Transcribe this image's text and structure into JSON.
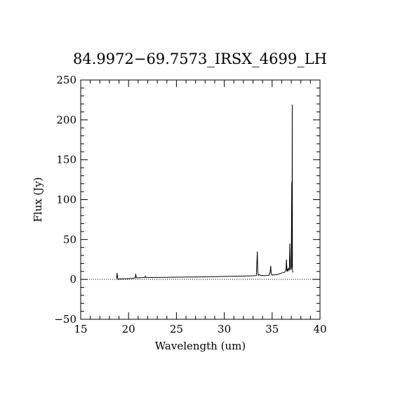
{
  "chart_data": {
    "type": "line",
    "title": "84.9972−69.7573_IRSX_4699_LH",
    "xlabel": "Wavelength (um)",
    "ylabel": "Flux (Jy)",
    "xlim": [
      15,
      40
    ],
    "ylim": [
      -50,
      250
    ],
    "x_ticks": [
      15,
      20,
      25,
      30,
      35,
      40
    ],
    "y_ticks": [
      -50,
      0,
      50,
      100,
      150,
      200,
      250
    ],
    "x_tick_labels": [
      "15",
      "20",
      "25",
      "30",
      "35",
      "40"
    ],
    "y_tick_labels": [
      "−50",
      "0",
      "50",
      "100",
      "150",
      "200",
      "250"
    ],
    "zero_line": true,
    "grid": false,
    "series": [
      {
        "x": [
          18.75,
          18.8,
          18.85,
          18.9,
          19.0,
          19.5,
          20.0,
          20.5,
          20.7,
          20.75,
          20.8,
          21.0,
          21.5,
          21.7,
          21.75,
          21.8,
          22.0,
          23.0,
          24.0,
          25.0,
          26.0,
          27.0,
          28.0,
          29.0,
          30.0,
          31.0,
          32.0,
          33.0,
          33.35,
          33.45,
          33.5,
          33.55,
          33.65,
          33.8,
          34.0,
          34.2,
          34.5,
          34.7,
          34.8,
          34.85,
          34.9,
          35.0,
          35.5,
          36.0,
          36.3,
          36.45,
          36.5,
          36.55,
          36.6,
          36.65,
          36.7,
          36.8,
          36.85,
          36.9,
          36.95,
          37.0,
          37.02,
          37.05,
          37.08,
          37.1,
          37.12,
          37.15,
          37.18,
          37.2
        ],
        "y": [
          1,
          8,
          3,
          0,
          0.5,
          0.8,
          1,
          1.5,
          2,
          7,
          2,
          2,
          2.2,
          2.5,
          4,
          2.5,
          2.5,
          2.5,
          2.6,
          2.8,
          3,
          3,
          3.2,
          3.5,
          3.8,
          4,
          4.2,
          4.5,
          4.8,
          35,
          10,
          5,
          6,
          5,
          5,
          4.8,
          5,
          5.5,
          10,
          17,
          7,
          5.5,
          6,
          8,
          9,
          12,
          25,
          10,
          13,
          10,
          14,
          12,
          45,
          15,
          12,
          14,
          60,
          122,
          15,
          219,
          12,
          10,
          9,
          9
        ]
      }
    ]
  }
}
